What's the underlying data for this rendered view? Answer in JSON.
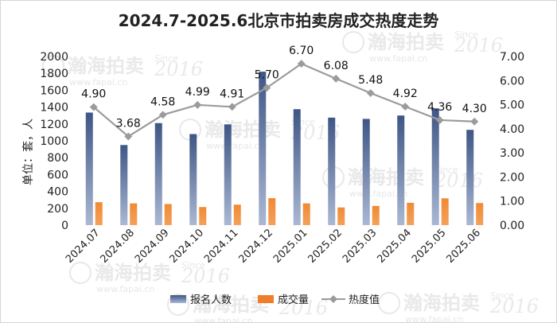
{
  "chart_data": {
    "type": "bar",
    "title": "2024.7-2025.6北京市拍卖房成交热度走势",
    "ylabel": "单位：套，人",
    "ylim_left": [
      0,
      2000
    ],
    "ylim_right": [
      0,
      7
    ],
    "yticks_left": [
      "0",
      "200",
      "400",
      "600",
      "800",
      "1000",
      "1200",
      "1400",
      "1600",
      "1800",
      "2000"
    ],
    "yticks_right": [
      "0.00",
      "1.00",
      "2.00",
      "3.00",
      "4.00",
      "5.00",
      "6.00",
      "7.00"
    ],
    "categories": [
      "2024.07",
      "2024.08",
      "2024.09",
      "2024.10",
      "2024.11",
      "2024.12",
      "2025.01",
      "2025.02",
      "2025.03",
      "2025.04",
      "2025.05",
      "2025.06"
    ],
    "series": [
      {
        "name": "报名人数",
        "kind": "bar",
        "axis": "left",
        "color": "#4a5f8c",
        "values": [
          1335,
          950,
          1210,
          1080,
          1195,
          1820,
          1375,
          1275,
          1260,
          1300,
          1385,
          1130
        ]
      },
      {
        "name": "成交量",
        "kind": "bar",
        "axis": "left",
        "color": "#f07d28",
        "values": [
          272,
          258,
          250,
          215,
          243,
          320,
          258,
          210,
          228,
          265,
          318,
          262
        ]
      },
      {
        "name": "热度值",
        "kind": "line",
        "axis": "right",
        "color": "#9b9b9b",
        "values": [
          4.9,
          3.68,
          4.58,
          4.99,
          4.91,
          5.7,
          6.7,
          6.08,
          5.48,
          4.92,
          4.36,
          4.3
        ],
        "labels": [
          "4.90",
          "3.68",
          "4.58",
          "4.99",
          "4.91",
          "5.70",
          "6.70",
          "6.08",
          "5.48",
          "4.92",
          "4.36",
          "4.30"
        ]
      }
    ],
    "legend_position": "bottom",
    "grid": false
  },
  "watermark": {
    "logo_text": "瀚海拍卖",
    "year_text": "2016",
    "since_text": "Since",
    "url_text": "www.fapai.cn"
  }
}
